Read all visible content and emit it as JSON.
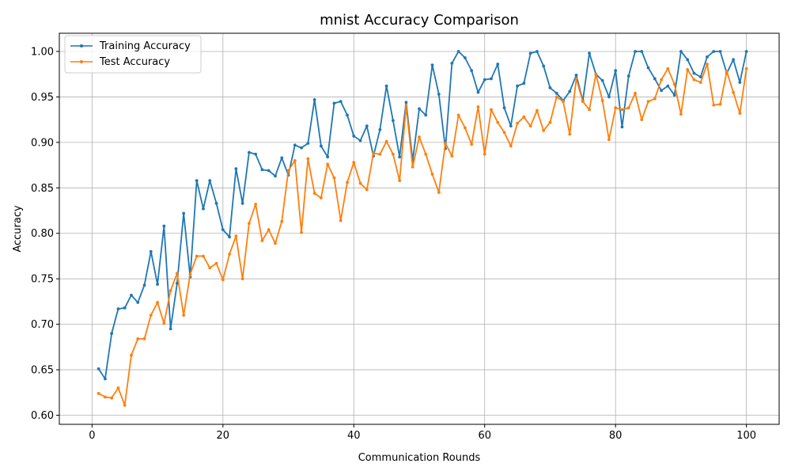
{
  "chart_data": {
    "type": "line",
    "title": "mnist Accuracy Comparison",
    "xlabel": "Communication Rounds",
    "ylabel": "Accuracy",
    "xlim": [
      -5,
      105
    ],
    "ylim": [
      0.59,
      1.02
    ],
    "xticks": [
      0,
      20,
      40,
      60,
      80,
      100
    ],
    "yticks": [
      0.6,
      0.65,
      0.7,
      0.75,
      0.8,
      0.85,
      0.9,
      0.95,
      1.0
    ],
    "ytick_labels": [
      "0.60",
      "0.65",
      "0.70",
      "0.75",
      "0.80",
      "0.85",
      "0.90",
      "0.95",
      "1.00"
    ],
    "grid": true,
    "legend_position": "top-left",
    "x": [
      1,
      2,
      3,
      4,
      5,
      6,
      7,
      8,
      9,
      10,
      11,
      12,
      13,
      14,
      15,
      16,
      17,
      18,
      19,
      20,
      21,
      22,
      23,
      24,
      25,
      26,
      27,
      28,
      29,
      30,
      31,
      32,
      33,
      34,
      35,
      36,
      37,
      38,
      39,
      40,
      41,
      42,
      43,
      44,
      45,
      46,
      47,
      48,
      49,
      50,
      51,
      52,
      53,
      54,
      55,
      56,
      57,
      58,
      59,
      60,
      61,
      62,
      63,
      64,
      65,
      66,
      67,
      68,
      69,
      70,
      71,
      72,
      73,
      74,
      75,
      76,
      77,
      78,
      79,
      80,
      81,
      82,
      83,
      84,
      85,
      86,
      87,
      88,
      89,
      90,
      91,
      92,
      93,
      94,
      95,
      96,
      97,
      98,
      99,
      100
    ],
    "series": [
      {
        "name": "Training Accuracy",
        "color": "#1f77b4",
        "values": [
          0.651,
          0.64,
          0.69,
          0.717,
          0.718,
          0.732,
          0.724,
          0.743,
          0.78,
          0.744,
          0.808,
          0.695,
          0.745,
          0.822,
          0.752,
          0.858,
          0.827,
          0.858,
          0.833,
          0.804,
          0.796,
          0.871,
          0.833,
          0.889,
          0.887,
          0.87,
          0.869,
          0.863,
          0.883,
          0.864,
          0.897,
          0.894,
          0.899,
          0.947,
          0.896,
          0.884,
          0.943,
          0.945,
          0.93,
          0.907,
          0.902,
          0.918,
          0.885,
          0.914,
          0.962,
          0.924,
          0.884,
          0.944,
          0.88,
          0.937,
          0.93,
          0.985,
          0.953,
          0.893,
          0.987,
          1.0,
          0.993,
          0.979,
          0.955,
          0.969,
          0.97,
          0.986,
          0.938,
          0.918,
          0.962,
          0.965,
          0.998,
          1.0,
          0.984,
          0.96,
          0.954,
          0.946,
          0.956,
          0.974,
          0.946,
          0.998,
          0.975,
          0.968,
          0.95,
          0.979,
          0.917,
          0.973,
          1.0,
          1.0,
          0.982,
          0.97,
          0.957,
          0.962,
          0.952,
          1.0,
          0.991,
          0.976,
          0.972,
          0.994,
          1.0,
          1.0,
          0.976,
          0.991,
          0.966,
          1.0
        ]
      },
      {
        "name": "Test Accuracy",
        "color": "#ff7f0e",
        "values": [
          0.624,
          0.62,
          0.619,
          0.63,
          0.611,
          0.666,
          0.684,
          0.684,
          0.71,
          0.724,
          0.701,
          0.737,
          0.756,
          0.71,
          0.755,
          0.775,
          0.775,
          0.762,
          0.767,
          0.749,
          0.777,
          0.797,
          0.75,
          0.811,
          0.832,
          0.792,
          0.804,
          0.789,
          0.813,
          0.869,
          0.88,
          0.801,
          0.882,
          0.844,
          0.839,
          0.876,
          0.861,
          0.814,
          0.856,
          0.878,
          0.855,
          0.848,
          0.888,
          0.887,
          0.901,
          0.887,
          0.858,
          0.94,
          0.873,
          0.906,
          0.887,
          0.865,
          0.845,
          0.899,
          0.885,
          0.93,
          0.916,
          0.898,
          0.939,
          0.887,
          0.936,
          0.922,
          0.911,
          0.896,
          0.921,
          0.928,
          0.918,
          0.935,
          0.913,
          0.922,
          0.95,
          0.945,
          0.909,
          0.97,
          0.945,
          0.936,
          0.975,
          0.946,
          0.903,
          0.938,
          0.936,
          0.938,
          0.954,
          0.925,
          0.945,
          0.948,
          0.969,
          0.981,
          0.964,
          0.931,
          0.98,
          0.969,
          0.966,
          0.986,
          0.941,
          0.942,
          0.978,
          0.955,
          0.932,
          0.981
        ]
      }
    ]
  }
}
